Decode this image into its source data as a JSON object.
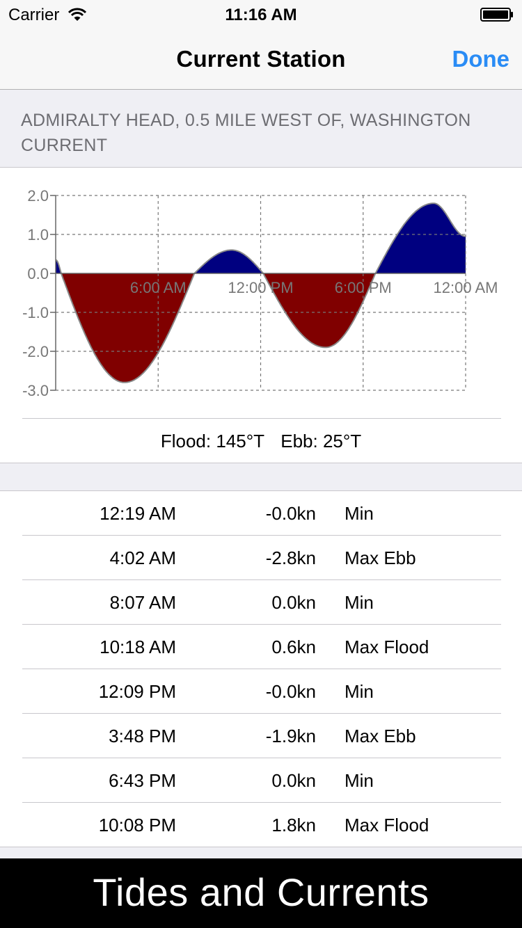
{
  "status_bar": {
    "carrier": "Carrier",
    "time": "11:16 AM",
    "wifi_icon": "wifi-icon",
    "battery_icon": "battery-full-icon"
  },
  "nav": {
    "title": "Current Station",
    "done_label": "Done",
    "accent_color": "#2a8cf5"
  },
  "station": {
    "name": "ADMIRALTY HEAD, 0.5 MILE WEST OF, WASHINGTON CURRENT"
  },
  "chart_data": {
    "type": "area",
    "x_tick_labels": [
      "6:00 AM",
      "12:00 PM",
      "6:00 PM",
      "12:00 AM"
    ],
    "y_tick_labels": [
      "2.0",
      "1.0",
      "0.0",
      "-1.0",
      "-2.0",
      "-3.0"
    ],
    "ylim": [
      -3.0,
      2.0
    ],
    "xlim_hours": [
      0,
      24
    ],
    "grid": true,
    "flood_color": "#000080",
    "ebb_color": "#800000",
    "events": [
      {
        "hour": 0.32,
        "value": 0.0
      },
      {
        "hour": 4.03,
        "value": -2.8
      },
      {
        "hour": 8.12,
        "value": 0.0
      },
      {
        "hour": 10.3,
        "value": 0.6
      },
      {
        "hour": 12.15,
        "value": 0.0
      },
      {
        "hour": 15.8,
        "value": -1.9
      },
      {
        "hour": 18.72,
        "value": 0.0
      },
      {
        "hour": 22.13,
        "value": 1.8
      }
    ],
    "start_value": 0.35,
    "end_value": 0.95
  },
  "directions": {
    "flood": "Flood: 145°T",
    "ebb": "Ebb: 25°T"
  },
  "events_table": [
    {
      "time": "12:19 AM",
      "speed": "-0.0kn",
      "type": "Min"
    },
    {
      "time": "4:02 AM",
      "speed": "-2.8kn",
      "type": "Max Ebb"
    },
    {
      "time": "8:07 AM",
      "speed": "0.0kn",
      "type": "Min"
    },
    {
      "time": "10:18 AM",
      "speed": "0.6kn",
      "type": "Max Flood"
    },
    {
      "time": "12:09 PM",
      "speed": "-0.0kn",
      "type": "Min"
    },
    {
      "time": "3:48 PM",
      "speed": "-1.9kn",
      "type": "Max Ebb"
    },
    {
      "time": "6:43 PM",
      "speed": "0.0kn",
      "type": "Min"
    },
    {
      "time": "10:08 PM",
      "speed": "1.8kn",
      "type": "Max Flood"
    }
  ],
  "banner": {
    "text": "Tides and Currents"
  }
}
